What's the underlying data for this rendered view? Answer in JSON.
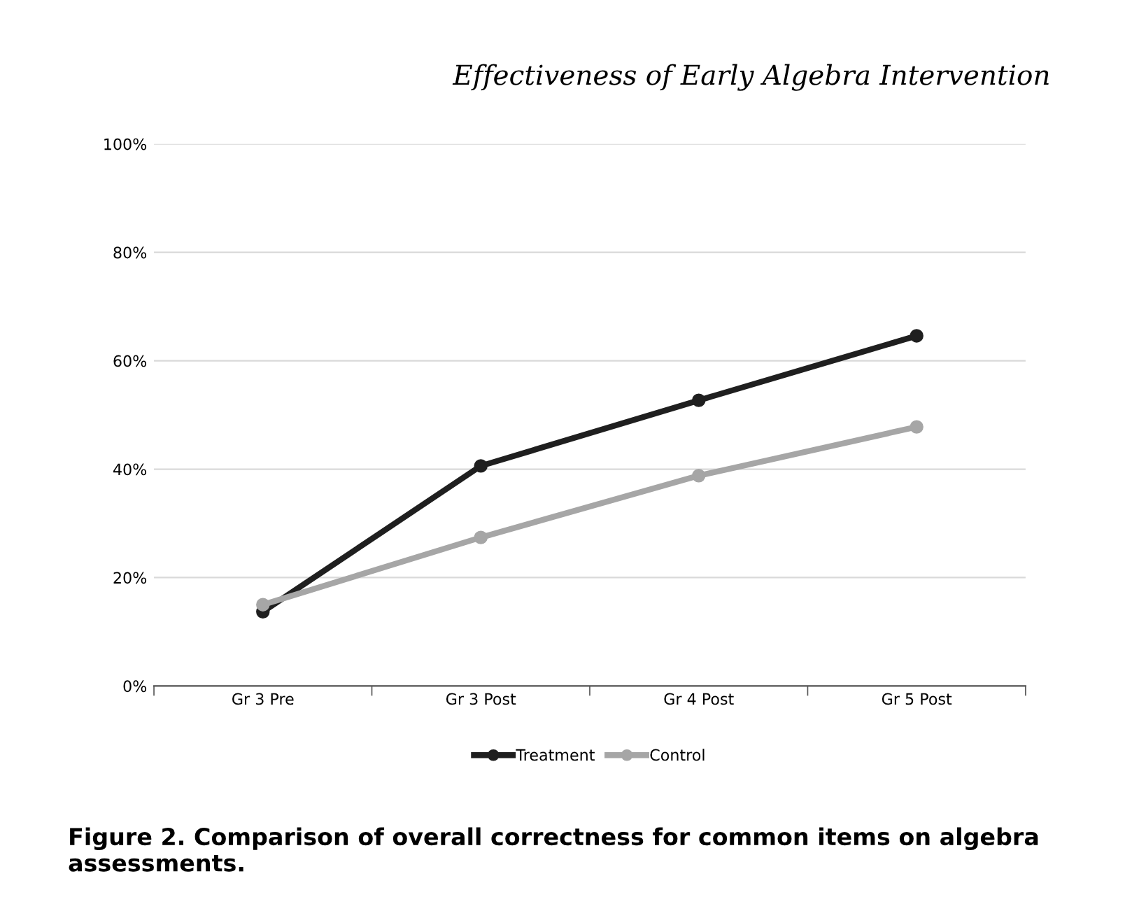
{
  "chart_data": {
    "type": "line",
    "title": "Effectiveness of Early Algebra Intervention",
    "categories": [
      "Gr 3 Pre",
      "Gr 3 Post",
      "Gr 4 Post",
      "Gr 5 Post"
    ],
    "series": [
      {
        "name": "Treatment",
        "color": "#1f1f1f",
        "values": [
          13.7,
          40.6,
          52.7,
          64.6
        ]
      },
      {
        "name": "Control",
        "color": "#a6a6a6",
        "values": [
          15.0,
          27.4,
          38.8,
          47.8
        ]
      }
    ],
    "ylim": [
      0,
      100
    ],
    "yticks": [
      {
        "value": 0,
        "label": "0%"
      },
      {
        "value": 20,
        "label": "20%"
      },
      {
        "value": 40,
        "label": "40%"
      },
      {
        "value": 60,
        "label": "60%"
      },
      {
        "value": 80,
        "label": "80%"
      },
      {
        "value": 100,
        "label": "100%"
      }
    ],
    "grid": "y",
    "legend": "bottom",
    "marker": "circle",
    "line_style": "solid",
    "annotations": [
      "Figure 2. Comparison of overall correctness for common items on algebra assessments."
    ]
  }
}
